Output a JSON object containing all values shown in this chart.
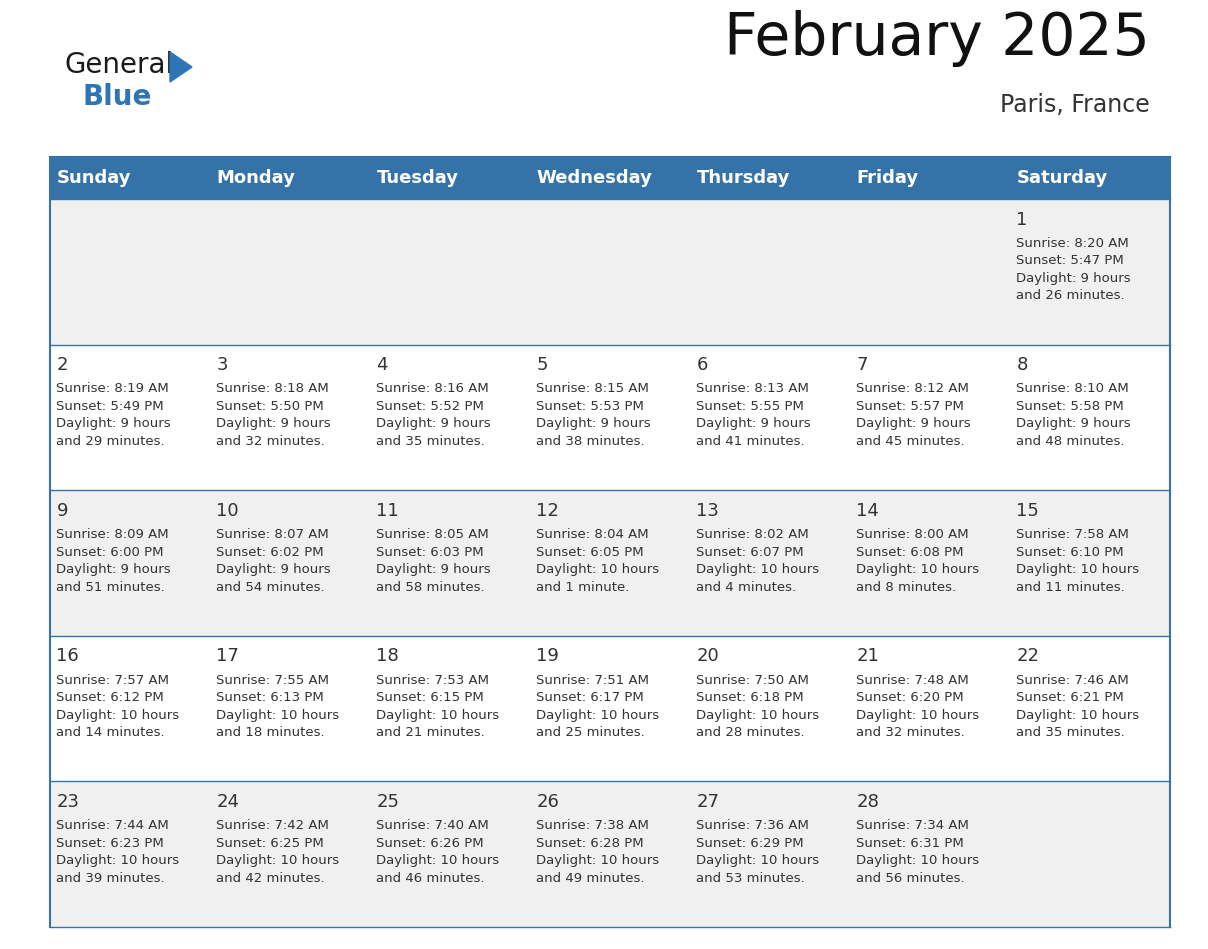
{
  "title": "February 2025",
  "subtitle": "Paris, France",
  "header_bg": "#3572a8",
  "header_text_color": "#FFFFFF",
  "cell_bg_odd": "#FFFFFF",
  "cell_bg_even": "#F0F0F0",
  "border_color": "#3572a8",
  "row_border_color": "#3572a8",
  "text_color": "#333333",
  "days_of_week": [
    "Sunday",
    "Monday",
    "Tuesday",
    "Wednesday",
    "Thursday",
    "Friday",
    "Saturday"
  ],
  "weeks": [
    [
      {
        "day": null,
        "info": null
      },
      {
        "day": null,
        "info": null
      },
      {
        "day": null,
        "info": null
      },
      {
        "day": null,
        "info": null
      },
      {
        "day": null,
        "info": null
      },
      {
        "day": null,
        "info": null
      },
      {
        "day": 1,
        "info": "Sunrise: 8:20 AM\nSunset: 5:47 PM\nDaylight: 9 hours\nand 26 minutes."
      }
    ],
    [
      {
        "day": 2,
        "info": "Sunrise: 8:19 AM\nSunset: 5:49 PM\nDaylight: 9 hours\nand 29 minutes."
      },
      {
        "day": 3,
        "info": "Sunrise: 8:18 AM\nSunset: 5:50 PM\nDaylight: 9 hours\nand 32 minutes."
      },
      {
        "day": 4,
        "info": "Sunrise: 8:16 AM\nSunset: 5:52 PM\nDaylight: 9 hours\nand 35 minutes."
      },
      {
        "day": 5,
        "info": "Sunrise: 8:15 AM\nSunset: 5:53 PM\nDaylight: 9 hours\nand 38 minutes."
      },
      {
        "day": 6,
        "info": "Sunrise: 8:13 AM\nSunset: 5:55 PM\nDaylight: 9 hours\nand 41 minutes."
      },
      {
        "day": 7,
        "info": "Sunrise: 8:12 AM\nSunset: 5:57 PM\nDaylight: 9 hours\nand 45 minutes."
      },
      {
        "day": 8,
        "info": "Sunrise: 8:10 AM\nSunset: 5:58 PM\nDaylight: 9 hours\nand 48 minutes."
      }
    ],
    [
      {
        "day": 9,
        "info": "Sunrise: 8:09 AM\nSunset: 6:00 PM\nDaylight: 9 hours\nand 51 minutes."
      },
      {
        "day": 10,
        "info": "Sunrise: 8:07 AM\nSunset: 6:02 PM\nDaylight: 9 hours\nand 54 minutes."
      },
      {
        "day": 11,
        "info": "Sunrise: 8:05 AM\nSunset: 6:03 PM\nDaylight: 9 hours\nand 58 minutes."
      },
      {
        "day": 12,
        "info": "Sunrise: 8:04 AM\nSunset: 6:05 PM\nDaylight: 10 hours\nand 1 minute."
      },
      {
        "day": 13,
        "info": "Sunrise: 8:02 AM\nSunset: 6:07 PM\nDaylight: 10 hours\nand 4 minutes."
      },
      {
        "day": 14,
        "info": "Sunrise: 8:00 AM\nSunset: 6:08 PM\nDaylight: 10 hours\nand 8 minutes."
      },
      {
        "day": 15,
        "info": "Sunrise: 7:58 AM\nSunset: 6:10 PM\nDaylight: 10 hours\nand 11 minutes."
      }
    ],
    [
      {
        "day": 16,
        "info": "Sunrise: 7:57 AM\nSunset: 6:12 PM\nDaylight: 10 hours\nand 14 minutes."
      },
      {
        "day": 17,
        "info": "Sunrise: 7:55 AM\nSunset: 6:13 PM\nDaylight: 10 hours\nand 18 minutes."
      },
      {
        "day": 18,
        "info": "Sunrise: 7:53 AM\nSunset: 6:15 PM\nDaylight: 10 hours\nand 21 minutes."
      },
      {
        "day": 19,
        "info": "Sunrise: 7:51 AM\nSunset: 6:17 PM\nDaylight: 10 hours\nand 25 minutes."
      },
      {
        "day": 20,
        "info": "Sunrise: 7:50 AM\nSunset: 6:18 PM\nDaylight: 10 hours\nand 28 minutes."
      },
      {
        "day": 21,
        "info": "Sunrise: 7:48 AM\nSunset: 6:20 PM\nDaylight: 10 hours\nand 32 minutes."
      },
      {
        "day": 22,
        "info": "Sunrise: 7:46 AM\nSunset: 6:21 PM\nDaylight: 10 hours\nand 35 minutes."
      }
    ],
    [
      {
        "day": 23,
        "info": "Sunrise: 7:44 AM\nSunset: 6:23 PM\nDaylight: 10 hours\nand 39 minutes."
      },
      {
        "day": 24,
        "info": "Sunrise: 7:42 AM\nSunset: 6:25 PM\nDaylight: 10 hours\nand 42 minutes."
      },
      {
        "day": 25,
        "info": "Sunrise: 7:40 AM\nSunset: 6:26 PM\nDaylight: 10 hours\nand 46 minutes."
      },
      {
        "day": 26,
        "info": "Sunrise: 7:38 AM\nSunset: 6:28 PM\nDaylight: 10 hours\nand 49 minutes."
      },
      {
        "day": 27,
        "info": "Sunrise: 7:36 AM\nSunset: 6:29 PM\nDaylight: 10 hours\nand 53 minutes."
      },
      {
        "day": 28,
        "info": "Sunrise: 7:34 AM\nSunset: 6:31 PM\nDaylight: 10 hours\nand 56 minutes."
      },
      {
        "day": null,
        "info": null
      }
    ]
  ],
  "logo_general_color": "#1a1a1a",
  "logo_blue_color": "#2E75B6",
  "logo_triangle_color": "#2E75B6",
  "title_fontsize": 42,
  "subtitle_fontsize": 17,
  "logo_fontsize": 20,
  "header_fontsize": 13,
  "day_num_fontsize": 13,
  "info_fontsize": 9.5
}
